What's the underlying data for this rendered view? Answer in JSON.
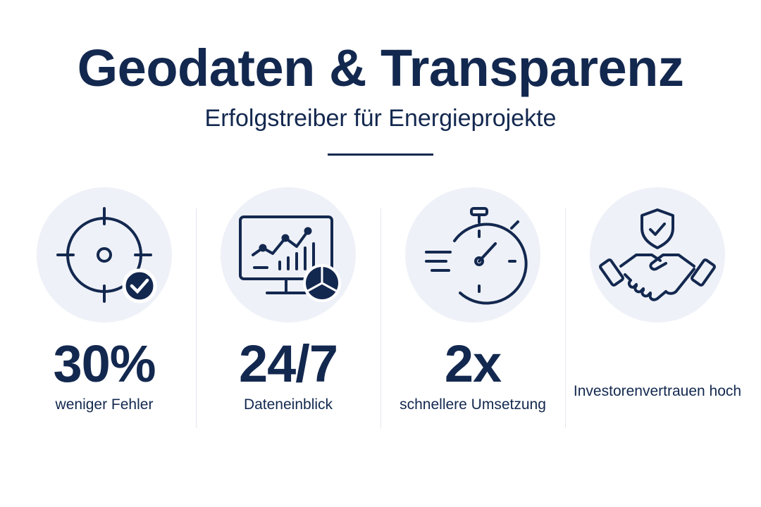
{
  "header": {
    "title": "Geodaten & Transparenz",
    "subtitle": "Erfolgstreiber für Energieprojekte"
  },
  "colors": {
    "primary": "#13284f",
    "circle_bg": "#eef1f7",
    "divider": "#e3e7ee",
    "background": "#ffffff"
  },
  "stats": [
    {
      "icon": "target-check-icon",
      "value": "30%",
      "label": "weniger Fehler"
    },
    {
      "icon": "monitor-chart-icon",
      "value": "24/7",
      "label": "Dateneinblick"
    },
    {
      "icon": "stopwatch-icon",
      "value": "2x",
      "label": "schnellere Umsetzung"
    },
    {
      "icon": "handshake-shield-icon",
      "value": "",
      "label": "Investorenvertrauen hoch"
    }
  ]
}
